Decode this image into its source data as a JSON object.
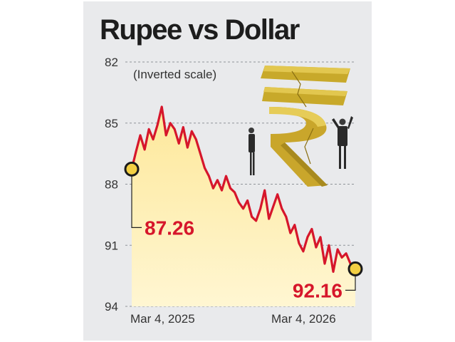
{
  "chart_data": {
    "type": "area",
    "title": "Rupee vs Dollar",
    "annotation": "(Inverted scale)",
    "y_inverted": true,
    "yticks": [
      82,
      85,
      88,
      91,
      94
    ],
    "ylim": [
      82,
      94
    ],
    "x_tick_labels": [
      "Mar 4, 2025",
      "Mar 4, 2026"
    ],
    "grid": true,
    "colors": {
      "line": "#d6162b",
      "fill": "#fde79a",
      "marker": "#f2cf43"
    },
    "start": {
      "date": "Mar 4, 2025",
      "value": 87.26,
      "label": "87.26"
    },
    "end": {
      "date": "Mar 4, 2026",
      "value": 92.16,
      "label": "92.16"
    },
    "series": [
      {
        "x": [
          "2025-03-04",
          "2025-03-11",
          "2025-03-18",
          "2025-03-25",
          "2025-04-01",
          "2025-04-08",
          "2025-04-15",
          "2025-04-22",
          "2025-04-29",
          "2025-05-06",
          "2025-05-13",
          "2025-05-20",
          "2025-05-27",
          "2025-06-03",
          "2025-06-10",
          "2025-06-17",
          "2025-06-24",
          "2025-07-01",
          "2025-07-08",
          "2025-07-15",
          "2025-07-22",
          "2025-07-29",
          "2025-08-05",
          "2025-08-12",
          "2025-08-19",
          "2025-08-26",
          "2025-09-02",
          "2025-09-09",
          "2025-09-16",
          "2025-09-23",
          "2025-09-30",
          "2025-10-07",
          "2025-10-14",
          "2025-10-21",
          "2025-10-28",
          "2025-11-04",
          "2025-11-11",
          "2025-11-18",
          "2025-11-25",
          "2025-12-02",
          "2025-12-09",
          "2025-12-16",
          "2025-12-23",
          "2025-12-30",
          "2026-01-06",
          "2026-01-13",
          "2026-01-20",
          "2026-01-27",
          "2026-02-03",
          "2026-02-10",
          "2026-02-17",
          "2026-02-24",
          "2026-03-04"
        ],
        "values": [
          87.26,
          86.4,
          85.6,
          86.3,
          85.3,
          85.8,
          85.1,
          84.2,
          85.6,
          85.0,
          85.3,
          86.0,
          85.2,
          86.2,
          85.4,
          85.8,
          86.5,
          87.2,
          87.6,
          88.2,
          87.8,
          88.3,
          87.6,
          88.2,
          88.4,
          88.9,
          89.2,
          88.8,
          89.6,
          89.8,
          89.2,
          88.3,
          89.7,
          89.1,
          88.5,
          89.2,
          89.6,
          90.4,
          90.0,
          90.9,
          91.3,
          90.6,
          90.2,
          91.1,
          90.6,
          91.9,
          91.0,
          92.3,
          91.2,
          91.6,
          91.4,
          91.9,
          92.16
        ]
      }
    ]
  }
}
